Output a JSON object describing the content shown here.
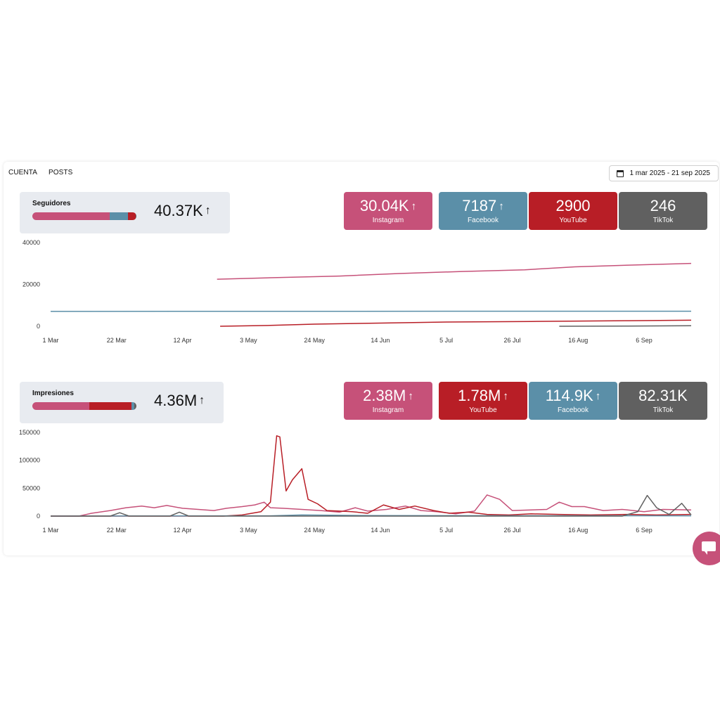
{
  "tabs": [
    {
      "label": "CUENTA"
    },
    {
      "label": "POSTS"
    }
  ],
  "date_range": {
    "label": "1 mar 2025 - 21 sep 2025",
    "icon": "calendar-icon"
  },
  "colors": {
    "instagram": "#c65179",
    "facebook": "#5b8fa8",
    "youtube": "#b81e26",
    "tiktok": "#606060"
  },
  "followers": {
    "title": "Seguidores",
    "total": "40.37K",
    "share": [
      {
        "platform": "instagram",
        "fraction": 0.744
      },
      {
        "platform": "facebook",
        "fraction": 0.178
      },
      {
        "platform": "youtube",
        "fraction": 0.072
      },
      {
        "platform": "tiktok",
        "fraction": 0.006
      }
    ],
    "cards": [
      {
        "value": "30.04K",
        "label": "Instagram",
        "platform": "instagram",
        "trend": "up"
      },
      {
        "value": "7187",
        "label": "Facebook",
        "platform": "facebook",
        "trend": "up"
      },
      {
        "value": "2900",
        "label": "YouTube",
        "platform": "youtube",
        "trend": "none"
      },
      {
        "value": "246",
        "label": "TikTok",
        "platform": "tiktok",
        "trend": "none"
      }
    ]
  },
  "impressions": {
    "title": "Impresiones",
    "total": "4.36M",
    "share": [
      {
        "platform": "instagram",
        "fraction": 0.546
      },
      {
        "platform": "youtube",
        "fraction": 0.408
      },
      {
        "platform": "facebook",
        "fraction": 0.026
      },
      {
        "platform": "tiktok",
        "fraction": 0.019
      }
    ],
    "cards": [
      {
        "value": "2.38M",
        "label": "Instagram",
        "platform": "instagram",
        "trend": "up"
      },
      {
        "value": "1.78M",
        "label": "YouTube",
        "platform": "youtube",
        "trend": "up"
      },
      {
        "value": "114.9K",
        "label": "Facebook",
        "platform": "facebook",
        "trend": "up"
      },
      {
        "value": "82.31K",
        "label": "TikTok",
        "platform": "tiktok",
        "trend": "none"
      }
    ]
  },
  "chart_data": [
    {
      "type": "line",
      "title": "",
      "xlabel": "",
      "ylabel": "",
      "x_ticks": [
        "1 Mar",
        "22 Mar",
        "12 Apr",
        "3 May",
        "24 May",
        "14 Jun",
        "5 Jul",
        "26 Jul",
        "16 Aug",
        "6 Sep"
      ],
      "y_ticks": [
        0,
        20000,
        40000
      ],
      "ylim": [
        0,
        40000
      ],
      "x_range": [
        "2025-03-01",
        "2025-09-21"
      ],
      "grid": false,
      "legend": "none",
      "series": [
        {
          "platform": "instagram",
          "points": [
            [
              "2025-04-23",
              22500
            ],
            [
              "2025-05-10",
              23200
            ],
            [
              "2025-06-01",
              24000
            ],
            [
              "2025-06-20",
              25200
            ],
            [
              "2025-07-10",
              26200
            ],
            [
              "2025-07-30",
              27000
            ],
            [
              "2025-08-15",
              28400
            ],
            [
              "2025-09-01",
              29200
            ],
            [
              "2025-09-21",
              30040
            ]
          ]
        },
        {
          "platform": "facebook",
          "points": [
            [
              "2025-03-01",
              7100
            ],
            [
              "2025-06-01",
              7150
            ],
            [
              "2025-09-21",
              7187
            ]
          ]
        },
        {
          "platform": "youtube",
          "points": [
            [
              "2025-04-24",
              0
            ],
            [
              "2025-05-10",
              400
            ],
            [
              "2025-05-24",
              1000
            ],
            [
              "2025-06-14",
              1500
            ],
            [
              "2025-07-05",
              2000
            ],
            [
              "2025-08-01",
              2300
            ],
            [
              "2025-09-01",
              2650
            ],
            [
              "2025-09-21",
              2900
            ]
          ]
        },
        {
          "platform": "tiktok",
          "points": [
            [
              "2025-08-10",
              0
            ],
            [
              "2025-09-01",
              100
            ],
            [
              "2025-09-21",
              246
            ]
          ]
        }
      ]
    },
    {
      "type": "line",
      "title": "",
      "xlabel": "",
      "ylabel": "",
      "x_ticks": [
        "1 Mar",
        "22 Mar",
        "12 Apr",
        "3 May",
        "24 May",
        "14 Jun",
        "5 Jul",
        "26 Jul",
        "16 Aug",
        "6 Sep"
      ],
      "y_ticks": [
        0,
        50000,
        100000,
        150000
      ],
      "ylim": [
        0,
        150000
      ],
      "x_range": [
        "2025-03-01",
        "2025-09-21"
      ],
      "grid": false,
      "legend": "none",
      "series": [
        {
          "platform": "instagram",
          "points": [
            [
              "2025-03-01",
              0
            ],
            [
              "2025-03-10",
              0
            ],
            [
              "2025-03-14",
              5000
            ],
            [
              "2025-03-20",
              10000
            ],
            [
              "2025-03-25",
              15000
            ],
            [
              "2025-03-30",
              18000
            ],
            [
              "2025-04-03",
              15000
            ],
            [
              "2025-04-07",
              19000
            ],
            [
              "2025-04-12",
              14000
            ],
            [
              "2025-04-17",
              12000
            ],
            [
              "2025-04-22",
              10000
            ],
            [
              "2025-04-26",
              14000
            ],
            [
              "2025-05-01",
              17000
            ],
            [
              "2025-05-05",
              20000
            ],
            [
              "2025-05-08",
              25000
            ],
            [
              "2025-05-10",
              15000
            ],
            [
              "2025-05-14",
              14000
            ],
            [
              "2025-05-20",
              12000
            ],
            [
              "2025-05-26",
              10000
            ],
            [
              "2025-06-01",
              7000
            ],
            [
              "2025-06-06",
              15000
            ],
            [
              "2025-06-10",
              9000
            ],
            [
              "2025-06-16",
              12000
            ],
            [
              "2025-06-22",
              18000
            ],
            [
              "2025-06-27",
              10000
            ],
            [
              "2025-07-02",
              8000
            ],
            [
              "2025-07-08",
              4000
            ],
            [
              "2025-07-14",
              9000
            ],
            [
              "2025-07-18",
              38000
            ],
            [
              "2025-07-22",
              30000
            ],
            [
              "2025-07-26",
              10000
            ],
            [
              "2025-08-01",
              11000
            ],
            [
              "2025-08-06",
              12000
            ],
            [
              "2025-08-10",
              25000
            ],
            [
              "2025-08-14",
              17000
            ],
            [
              "2025-08-18",
              17000
            ],
            [
              "2025-08-24",
              10000
            ],
            [
              "2025-08-30",
              12000
            ],
            [
              "2025-09-06",
              8000
            ],
            [
              "2025-09-12",
              12000
            ],
            [
              "2025-09-21",
              11000
            ]
          ]
        },
        {
          "platform": "youtube",
          "points": [
            [
              "2025-03-01",
              0
            ],
            [
              "2025-04-25",
              0
            ],
            [
              "2025-05-01",
              2000
            ],
            [
              "2025-05-07",
              8000
            ],
            [
              "2025-05-10",
              25000
            ],
            [
              "2025-05-12",
              144000
            ],
            [
              "2025-05-13",
              142000
            ],
            [
              "2025-05-15",
              45000
            ],
            [
              "2025-05-17",
              65000
            ],
            [
              "2025-05-20",
              85000
            ],
            [
              "2025-05-22",
              30000
            ],
            [
              "2025-05-25",
              22000
            ],
            [
              "2025-05-28",
              10000
            ],
            [
              "2025-06-01",
              9000
            ],
            [
              "2025-06-05",
              8000
            ],
            [
              "2025-06-10",
              5000
            ],
            [
              "2025-06-15",
              20000
            ],
            [
              "2025-06-20",
              12000
            ],
            [
              "2025-06-25",
              18000
            ],
            [
              "2025-07-01",
              10000
            ],
            [
              "2025-07-06",
              5000
            ],
            [
              "2025-07-12",
              7000
            ],
            [
              "2025-07-18",
              3000
            ],
            [
              "2025-07-25",
              2000
            ],
            [
              "2025-08-01",
              4000
            ],
            [
              "2025-08-10",
              3000
            ],
            [
              "2025-08-20",
              2000
            ],
            [
              "2025-09-01",
              3000
            ],
            [
              "2025-09-10",
              2000
            ],
            [
              "2025-09-21",
              3000
            ]
          ]
        },
        {
          "platform": "facebook",
          "points": [
            [
              "2025-03-01",
              0
            ],
            [
              "2025-05-10",
              500
            ],
            [
              "2025-05-20",
              2000
            ],
            [
              "2025-06-10",
              1000
            ],
            [
              "2025-07-10",
              800
            ],
            [
              "2025-08-10",
              600
            ],
            [
              "2025-09-21",
              500
            ]
          ]
        },
        {
          "platform": "tiktok",
          "points": [
            [
              "2025-03-01",
              0
            ],
            [
              "2025-03-20",
              0
            ],
            [
              "2025-03-23",
              6000
            ],
            [
              "2025-03-26",
              0
            ],
            [
              "2025-04-08",
              0
            ],
            [
              "2025-04-11",
              7000
            ],
            [
              "2025-04-14",
              0
            ],
            [
              "2025-08-30",
              0
            ],
            [
              "2025-09-04",
              8000
            ],
            [
              "2025-09-07",
              37000
            ],
            [
              "2025-09-10",
              15000
            ],
            [
              "2025-09-14",
              3000
            ],
            [
              "2025-09-18",
              23000
            ],
            [
              "2025-09-21",
              2000
            ]
          ]
        }
      ]
    }
  ]
}
